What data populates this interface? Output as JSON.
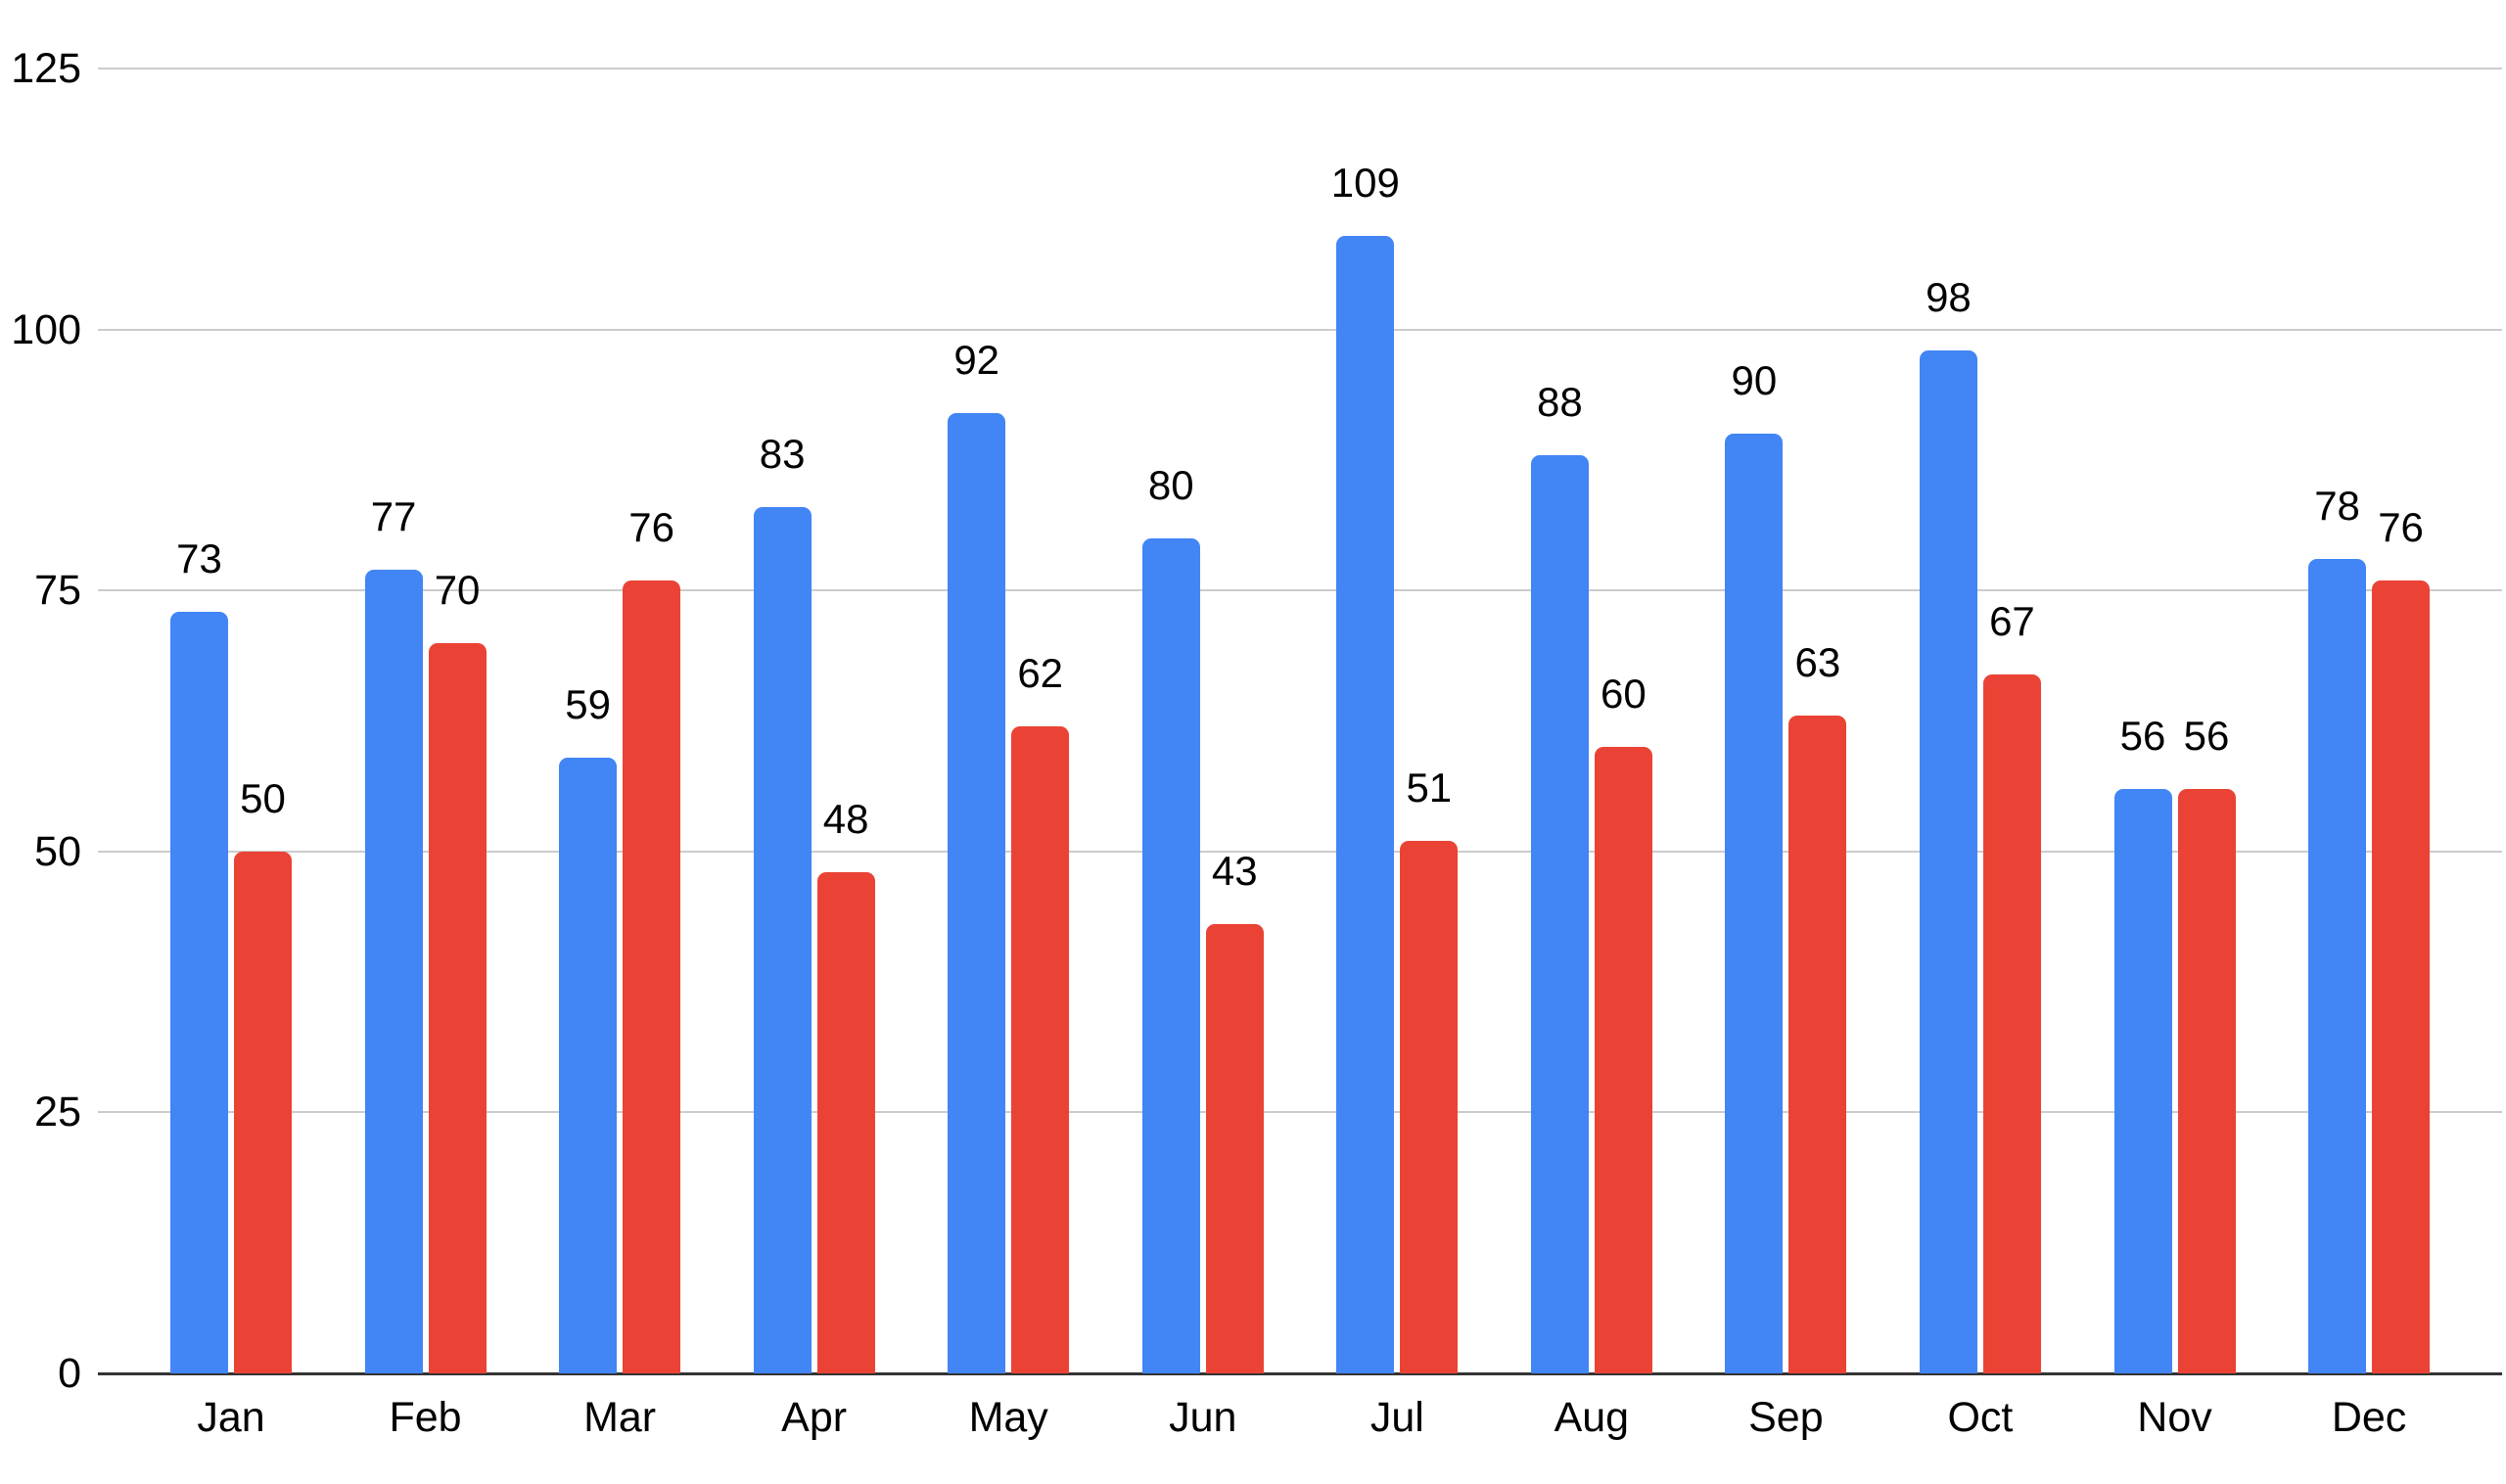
{
  "chart_data": {
    "type": "bar",
    "title": "",
    "xlabel": "",
    "ylabel": "",
    "categories": [
      "Jan",
      "Feb",
      "Mar",
      "Apr",
      "May",
      "Jun",
      "Jul",
      "Aug",
      "Sep",
      "Oct",
      "Nov",
      "Dec"
    ],
    "series": [
      {
        "color": "#4285F4",
        "values": [
          73,
          77,
          59,
          83,
          92,
          80,
          109,
          88,
          90,
          98,
          56,
          78
        ]
      },
      {
        "color": "#EA4335",
        "values": [
          50,
          70,
          76,
          48,
          62,
          43,
          51,
          60,
          63,
          67,
          56,
          76
        ]
      }
    ],
    "data_labels_visible": true,
    "ylim": [
      0,
      125
    ],
    "yticks": [
      0,
      25,
      50,
      75,
      100,
      125
    ],
    "grid": true,
    "legend": "none",
    "background_color": "#FFFFFF",
    "gridline_color": "#CCCCCC",
    "baseline_color": "#333333",
    "label_color": "#000000"
  }
}
